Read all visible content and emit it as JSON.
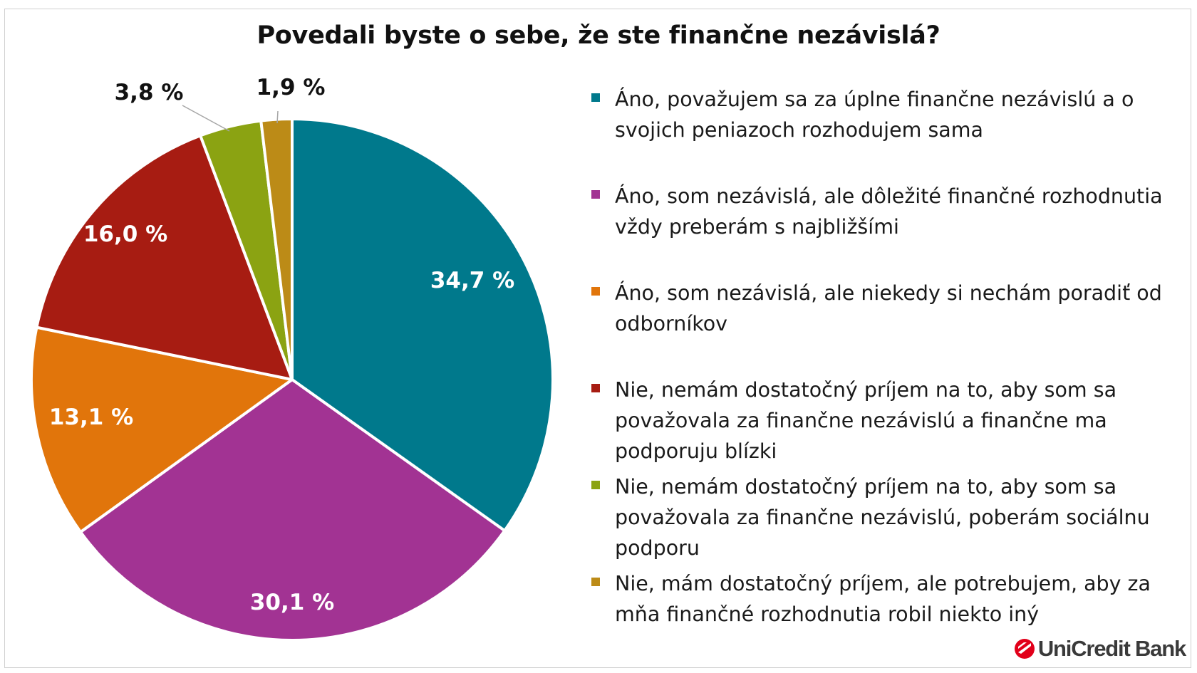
{
  "chart_data": {
    "type": "pie",
    "title": "Povedali byste o sebe, že ste finančne nezávislá?",
    "slices": [
      {
        "label": "Áno, považujem sa za úplne finančne nezávislú a o svojich peniazoch rozhodujem sama",
        "value": 34.7,
        "display": "34,7 %",
        "color": "#00798C"
      },
      {
        "label": "Áno, som nezávislá, ale dôležité finančné rozhodnutia vždy preberám s najbližšími",
        "value": 30.1,
        "display": "30,1 %",
        "color": "#A23393"
      },
      {
        "label": "Áno, som nezávislá, ale niekedy si nechám poradiť od odborníkov",
        "value": 13.1,
        "display": "13,1 %",
        "color": "#E1750B"
      },
      {
        "label": "Nie, nemám dostatočný príjem na to, aby som sa považovala za finančne nezávislú a finančne ma podporuju blízki",
        "value": 16.0,
        "display": "16,0 %",
        "color": "#A71C12"
      },
      {
        "label": "Nie, nemám dostatočný príjem na to, aby som sa považovala za finančne nezávislú, poberám sociálnu podporu",
        "value": 3.8,
        "display": "3,8 %",
        "color": "#8BA312"
      },
      {
        "label": "Nie, mám dostatočný príjem, ale potrebujem, aby za mňa finančné rozhodnutia robil niekto iný",
        "value": 1.9,
        "display": "1,9 %",
        "color": "#BC8B17"
      }
    ],
    "legend_position": "right"
  },
  "brand": {
    "name": "UniCredit Bank",
    "logo_icon": "unicredit-logo-icon",
    "logo_color": "#E2001A"
  }
}
